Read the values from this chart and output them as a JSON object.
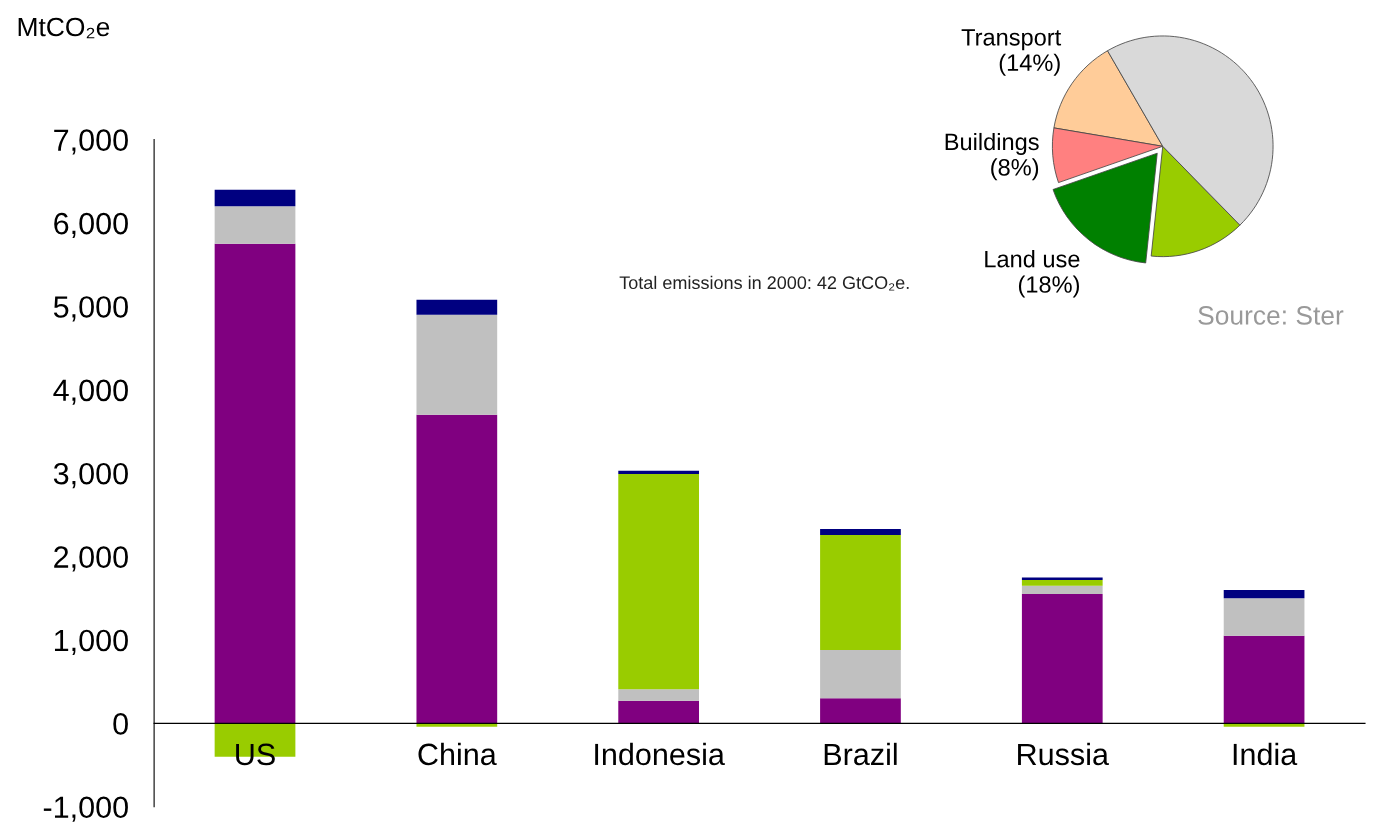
{
  "chart_data": [
    {
      "type": "bar",
      "ylabel": "MtCO₂e",
      "categories": [
        "US",
        "China",
        "Indonesia",
        "Brazil",
        "Russia",
        "India"
      ],
      "stacked": true,
      "series": [
        {
          "color": "#800080",
          "values": [
            5750,
            3700,
            270,
            300,
            1550,
            1050
          ]
        },
        {
          "color": "#c0c0c0",
          "values": [
            450,
            1200,
            140,
            580,
            100,
            450
          ]
        },
        {
          "color": "#99cc00",
          "values": [
            -400,
            -40,
            2580,
            1380,
            70,
            -40
          ]
        },
        {
          "color": "#000080",
          "values": [
            200,
            180,
            40,
            70,
            30,
            100
          ]
        }
      ],
      "ylim": [
        -1000,
        7000
      ],
      "yticks": [
        {
          "value": -1000,
          "label": "-1,000"
        },
        0,
        {
          "value": 1000,
          "label": "1,000"
        },
        {
          "value": 2000,
          "label": "2,000"
        },
        {
          "value": 3000,
          "label": "3,000"
        },
        {
          "value": 4000,
          "label": "4,000"
        },
        {
          "value": 5000,
          "label": "5,000"
        },
        {
          "value": 6000,
          "label": "6,000"
        },
        {
          "value": 7000,
          "label": "7,000"
        }
      ],
      "grid": false,
      "legend": false
    },
    {
      "type": "pie",
      "categories": [
        "Transport",
        "Buildings",
        "Land use",
        null,
        null
      ],
      "values": [
        14,
        8,
        18,
        14,
        46
      ],
      "colors": [
        "#ffcc99",
        "#ff8080",
        "#008000",
        "#99cc00",
        "#d9d9d9"
      ],
      "value_labels": [
        "(14%)",
        "(8%)",
        "(18%)",
        null,
        null
      ],
      "annotations": [
        "Total emissions in 2000: 42 GtCO₂e.",
        "Source: Ster"
      ]
    }
  ]
}
